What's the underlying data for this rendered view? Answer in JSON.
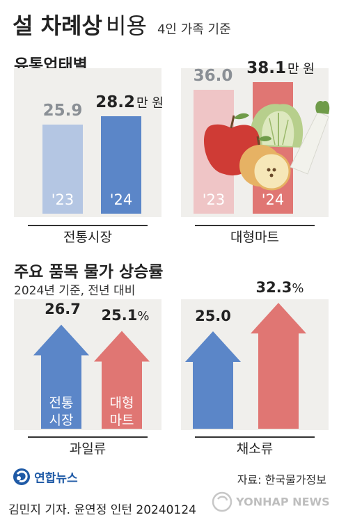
{
  "header": {
    "title": "설 차례상",
    "title_suffix": "비용",
    "subtitle": "4인 가족 기준"
  },
  "section1": {
    "title": "유통업태별",
    "unit": "만 원"
  },
  "section2": {
    "title": "주요 품목 물가 상승률",
    "note": "2024년 기준, 전년 대비",
    "percent": "%"
  },
  "colors": {
    "blue": "#5b86c8",
    "light_blue": "#b4c6e3",
    "red": "#e07673",
    "light_red": "#efc5c6",
    "panel": "#f0efec"
  },
  "chart_data": [
    {
      "type": "bar",
      "title": "유통업태별",
      "unit": "만 원",
      "groups": [
        {
          "name": "전통시장",
          "categories": [
            "'23",
            "'24"
          ],
          "values": [
            25.9,
            28.2
          ],
          "value_labels": [
            "25.9",
            "28.2"
          ]
        },
        {
          "name": "대형마트",
          "categories": [
            "'23",
            "'24"
          ],
          "values": [
            36.0,
            38.1
          ],
          "value_labels": [
            "36.0",
            "38.1"
          ]
        }
      ]
    },
    {
      "type": "bar",
      "title": "주요 품목 물가 상승률",
      "unit": "%",
      "groups": [
        {
          "name": "과일류",
          "categories": [
            "전통 시장",
            "대형 마트"
          ],
          "series": [
            {
              "name": "전통시장",
              "line1": "전통",
              "line2": "시장",
              "value": 26.7,
              "label": "26.7"
            },
            {
              "name": "대형마트",
              "line1": "대형",
              "line2": "마트",
              "value": 25.1,
              "label": "25.1"
            }
          ]
        },
        {
          "name": "채소류",
          "series": [
            {
              "name": "전통시장",
              "value": 25.0,
              "label": "25.0"
            },
            {
              "name": "대형마트",
              "value": 32.3,
              "label": "32.3"
            }
          ]
        }
      ]
    }
  ],
  "footer": {
    "logo_text": "연합뉴스",
    "source": "자료: 한국물가정보",
    "credit": "김민지 기자. 윤연정 인턴  20240124",
    "watermark": "YONHAP NEWS"
  }
}
